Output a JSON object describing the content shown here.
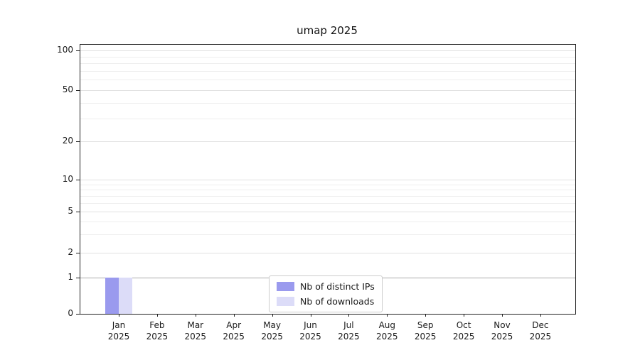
{
  "chart_data": {
    "type": "bar",
    "title": "umap 2025",
    "categories": [
      "Jan 2025",
      "Feb 2025",
      "Mar 2025",
      "Apr 2025",
      "May 2025",
      "Jun 2025",
      "Jul 2025",
      "Aug 2025",
      "Sep 2025",
      "Oct 2025",
      "Nov 2025",
      "Dec 2025"
    ],
    "series": [
      {
        "name": "Nb of distinct IPs",
        "color": "#9a9aee",
        "values": [
          1,
          0,
          0,
          0,
          0,
          0,
          0,
          0,
          0,
          0,
          0,
          0
        ]
      },
      {
        "name": "Nb of downloads",
        "color": "#dcdcf8",
        "values": [
          1,
          0,
          0,
          0,
          0,
          0,
          0,
          0,
          0,
          0,
          0,
          0
        ]
      }
    ],
    "yticks": [
      0,
      1,
      2,
      5,
      10,
      20,
      50,
      100
    ],
    "ylim": [
      0,
      100
    ],
    "yscale": "symlog",
    "grid": "both",
    "legend_position": "lower center"
  }
}
